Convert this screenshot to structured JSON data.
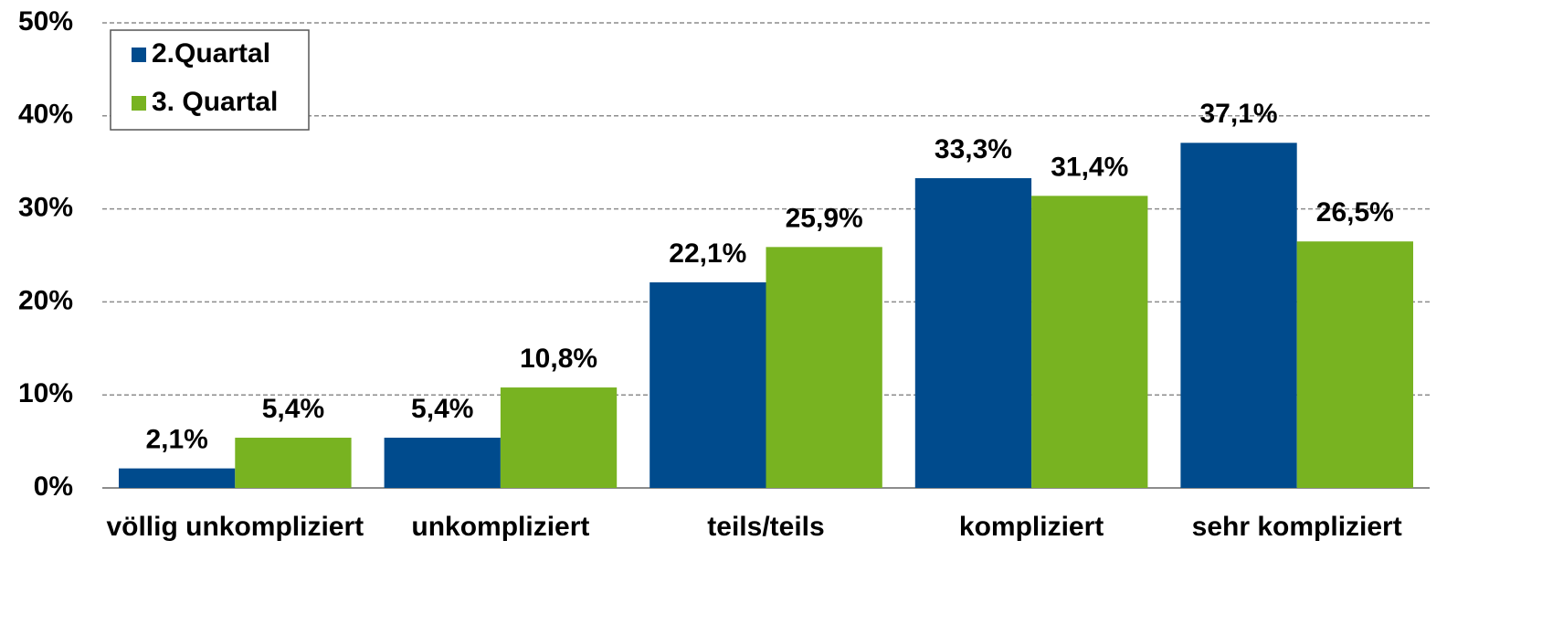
{
  "chart_data": {
    "type": "bar",
    "categories": [
      "völlig unkompliziert",
      "unkompliziert",
      "teils/teils",
      "kompliziert",
      "sehr kompliziert"
    ],
    "series": [
      {
        "name": "2.Quartal",
        "color": "#004b8d",
        "values": [
          2.1,
          5.4,
          22.1,
          33.3,
          37.1
        ],
        "value_labels": [
          "2,1%",
          "5,4%",
          "22,1%",
          "33,3%",
          "37,1%"
        ]
      },
      {
        "name": "3. Quartal",
        "color": "#78b321",
        "values": [
          5.4,
          10.8,
          25.9,
          31.4,
          26.5
        ],
        "value_labels": [
          "5,4%",
          "10,8%",
          "25,9%",
          "31,4%",
          "26,5%"
        ]
      }
    ],
    "ylim": [
      0,
      50
    ],
    "yticks": [
      {
        "value": 0,
        "label": "0%"
      },
      {
        "value": 10,
        "label": "10%"
      },
      {
        "value": 20,
        "label": "20%"
      },
      {
        "value": 30,
        "label": "30%"
      },
      {
        "value": 40,
        "label": "40%"
      },
      {
        "value": 50,
        "label": "50%"
      }
    ],
    "grid": true,
    "legend": "top-left"
  }
}
